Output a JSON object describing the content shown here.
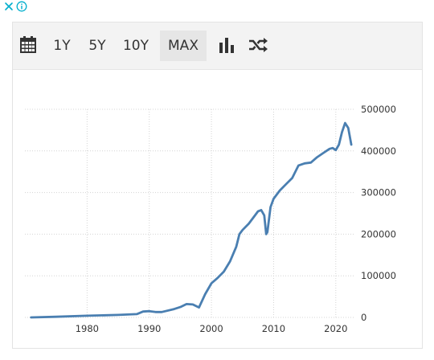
{
  "toolbar": {
    "calendar_icon": "calendar-icon",
    "ranges": [
      "1Y",
      "5Y",
      "10Y",
      "MAX"
    ],
    "active_range": "MAX",
    "bar_chart_icon": "bar-chart-icon",
    "shuffle_icon": "shuffle-icon"
  },
  "ad_controls": {
    "close_icon": "close-icon",
    "info_icon": "info-icon",
    "color": "#00aecd"
  },
  "chart_data": {
    "type": "line",
    "title": "",
    "xlabel": "",
    "ylabel": "",
    "xlim": [
      1970,
      2023
    ],
    "ylim": [
      0,
      500000
    ],
    "x_ticks": [
      1980,
      1990,
      2000,
      2010,
      2020
    ],
    "y_ticks": [
      0,
      100000,
      200000,
      300000,
      400000,
      500000
    ],
    "grid": true,
    "legend": "none",
    "y_axis_side": "right",
    "line_color": "#4a7fb1",
    "series": [
      {
        "x": [
          1971,
          1975,
          1980,
          1985,
          1988,
          1989,
          1990,
          1991,
          1992,
          1994,
          1995,
          1996,
          1997,
          1998,
          1999,
          2000,
          2001,
          2002,
          2003,
          2004,
          2004.5,
          2005,
          2006,
          2007,
          2007.5,
          2008,
          2008.5,
          2008.8,
          2009,
          2009.5,
          2010,
          2011,
          2012,
          2013,
          2014,
          2015,
          2016,
          2017,
          2018,
          2019,
          2019.5,
          2020,
          2020.5,
          2021,
          2021.5,
          2022,
          2022.5
        ],
        "y": [
          0,
          1500,
          4000,
          6000,
          8000,
          14000,
          15000,
          13000,
          13000,
          20000,
          25000,
          32000,
          31000,
          24000,
          56000,
          82000,
          95000,
          110000,
          135000,
          170000,
          200000,
          210000,
          225000,
          245000,
          255000,
          258000,
          245000,
          200000,
          205000,
          265000,
          285000,
          305000,
          320000,
          335000,
          365000,
          370000,
          372000,
          385000,
          395000,
          405000,
          407000,
          402000,
          415000,
          445000,
          467000,
          455000,
          415000
        ]
      }
    ]
  }
}
